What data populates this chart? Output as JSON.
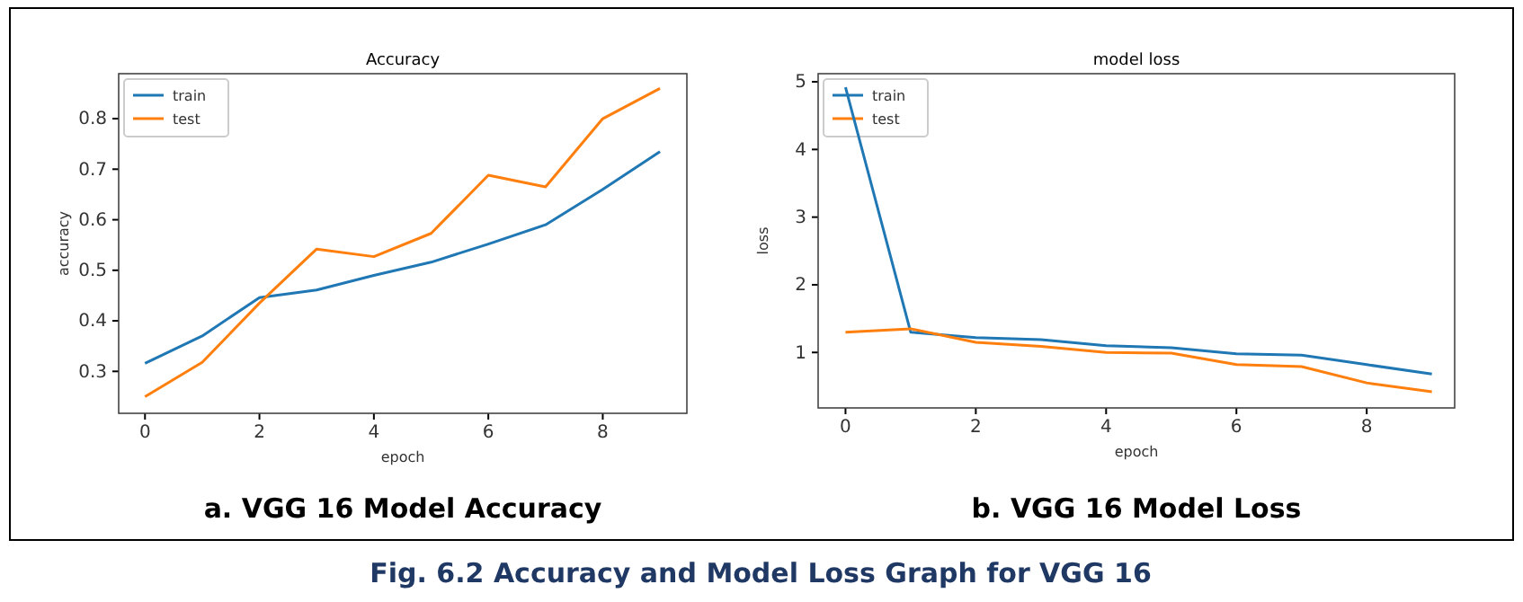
{
  "chart_data": [
    {
      "type": "line",
      "title": "Accuracy",
      "xlabel": "epoch",
      "ylabel": "accuracy",
      "x": [
        0,
        1,
        2,
        3,
        4,
        5,
        6,
        7,
        8,
        9
      ],
      "series": [
        {
          "name": "train",
          "color": "#1f77b4",
          "values": [
            0.316,
            0.37,
            0.446,
            0.461,
            0.49,
            0.516,
            0.552,
            0.59,
            0.66,
            0.735
          ]
        },
        {
          "name": "test",
          "color": "#ff7f0e",
          "values": [
            0.25,
            0.318,
            0.435,
            0.542,
            0.527,
            0.573,
            0.688,
            0.665,
            0.8,
            0.86
          ]
        }
      ],
      "xlim": [
        -0.46,
        9.47
      ],
      "xticks": [
        0,
        2,
        4,
        6,
        8
      ],
      "ylim": [
        0.217,
        0.889
      ],
      "yticks": [
        {
          "value": 0.3,
          "label": "0.3"
        },
        {
          "value": 0.4,
          "label": "0.4"
        },
        {
          "value": 0.5,
          "label": "0.5"
        },
        {
          "value": 0.6,
          "label": "0.6"
        },
        {
          "value": 0.7,
          "label": "0.7"
        },
        {
          "value": 0.8,
          "label": "0.8"
        }
      ],
      "legend": "top left",
      "grid": false,
      "annotations": [
        "a.   VGG 16 Model Accuracy"
      ]
    },
    {
      "type": "line",
      "title": "model loss",
      "xlabel": "epoch",
      "ylabel": "loss",
      "x": [
        0,
        1,
        2,
        3,
        4,
        5,
        6,
        7,
        8,
        9
      ],
      "series": [
        {
          "name": "train",
          "color": "#1f77b4",
          "values": [
            4.92,
            1.3,
            1.22,
            1.19,
            1.1,
            1.07,
            0.98,
            0.96,
            0.82,
            0.68
          ]
        },
        {
          "name": "test",
          "color": "#ff7f0e",
          "values": [
            1.3,
            1.35,
            1.15,
            1.09,
            1.0,
            0.99,
            0.82,
            0.79,
            0.55,
            0.42
          ]
        }
      ],
      "xlim": [
        -0.42,
        9.35
      ],
      "xticks": [
        0,
        2,
        4,
        6,
        8
      ],
      "ylim": [
        0.18,
        5.12
      ],
      "yticks": [
        1,
        2,
        3,
        4,
        5
      ],
      "legend": "top left",
      "grid": false,
      "annotations": [
        "b.   VGG 16 Model Loss",
        "Fig. 6.2 Accuracy and Model Loss Graph for VGG 16"
      ]
    }
  ]
}
